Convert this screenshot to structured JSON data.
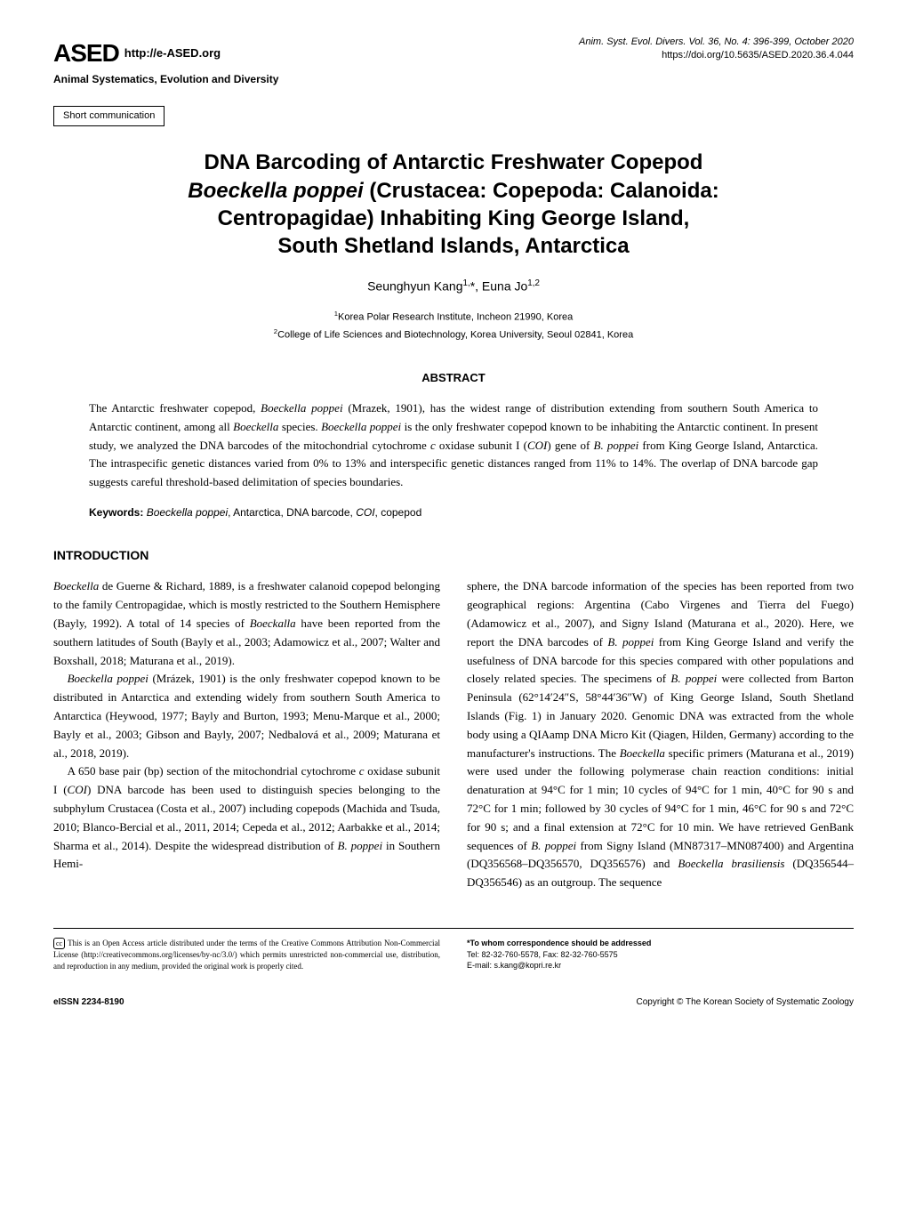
{
  "header": {
    "logo_text": "ASED",
    "logo_url": "http://e-ASED.org",
    "logo_subtitle": "Animal Systematics, Evolution and Diversity",
    "journal_line": "Anim. Syst. Evol. Divers.  Vol. 36, No. 4: 396-399,  October 2020",
    "doi": "https://doi.org/10.5635/ASED.2020.36.4.044"
  },
  "article_type": "Short communication",
  "title": {
    "line1": "DNA Barcoding of Antarctic Freshwater Copepod",
    "species": "Boeckella poppei",
    "line2_rest": " (Crustacea: Copepoda: Calanoida:",
    "line3": "Centropagidae) Inhabiting King George Island,",
    "line4": "South Shetland Islands, Antarctica"
  },
  "authors": "Seunghyun Kang1,*, Euna Jo1,2",
  "affiliations": {
    "a1": "1Korea Polar Research Institute, Incheon 21990, Korea",
    "a2": "2College of Life Sciences and Biotechnology, Korea University, Seoul 02841, Korea"
  },
  "abstract": {
    "heading": "ABSTRACT",
    "text": "The Antarctic freshwater copepod, Boeckella poppei (Mrazek, 1901), has the widest range of distribution extending from southern South America to Antarctic continent, among all Boeckella species. Boeckella poppei is the only freshwater copepod known to be inhabiting the Antarctic continent. In present study, we analyzed the DNA barcodes of the mitochondrial cytochrome c oxidase subunit I (COI) gene of B. poppei from King George Island, Antarctica. The intraspecific genetic distances varied from 0% to 13% and interspecific genetic distances ranged from 11% to 14%. The overlap of DNA barcode gap suggests careful threshold-based delimitation of species boundaries."
  },
  "keywords": {
    "label": "Keywords:",
    "text": " Boeckella poppei, Antarctica, DNA barcode, COI, copepod"
  },
  "introduction": {
    "heading": "INTRODUCTION",
    "col1_p1": "Boeckella de Guerne & Richard, 1889, is a freshwater calanoid copepod belonging to the family Centropagidae, which is mostly restricted to the Southern Hemisphere (Bayly, 1992). A total of 14 species of Boeckalla have been reported from the southern latitudes of South (Bayly et al., 2003; Adamowicz et al., 2007; Walter and Boxshall, 2018; Maturana et al., 2019).",
    "col1_p2": "Boeckella poppei (Mrázek, 1901) is the only freshwater copepod known to be distributed in Antarctica and extending widely from southern South America to Antarctica (Heywood, 1977; Bayly and Burton, 1993; Menu-Marque et al., 2000; Bayly et al., 2003; Gibson and Bayly, 2007; Nedbalová et al., 2009; Maturana et al., 2018, 2019).",
    "col1_p3": "A 650 base pair (bp) section of the mitochondrial cytochrome c oxidase subunit I (COI) DNA barcode has been used to distinguish species belonging to the subphylum Crustacea (Costa et al., 2007) including copepods (Machida and Tsuda, 2010; Blanco-Bercial et al., 2011, 2014; Cepeda et al., 2012; Aarbakke et al., 2014; Sharma et al., 2014). Despite the widespread distribution of B. poppei in Southern Hemi-",
    "col2_p1": "sphere, the DNA barcode information of the species has been reported from two geographical regions: Argentina (Cabo Virgenes and Tierra del Fuego) (Adamowicz et al., 2007), and Signy Island (Maturana et al., 2020). Here, we report the DNA barcodes of B. poppei from King George Island and verify the usefulness of DNA barcode for this species compared with other populations and closely related species. The specimens of B. poppei were collected from Barton Peninsula (62°14′24″S, 58°44′36″W) of King George Island, South Shetland Islands (Fig. 1) in January 2020. Genomic DNA was extracted from the whole body using a QIAamp DNA Micro Kit (Qiagen, Hilden, Germany) according to the manufacturer's instructions. The Boeckella specific primers (Maturana et al., 2019) were used under the following polymerase chain reaction conditions: initial denaturation at 94°C for 1 min; 10 cycles of 94°C for 1 min, 40°C for 90 s and 72°C for 1 min; followed by 30 cycles of 94°C for 1 min, 46°C for 90 s and 72°C for 90 s; and a final extension at 72°C for 10 min. We have retrieved GenBank sequences of B. poppei from Signy Island (MN87317–MN087400) and Argentina (DQ356568–DQ356570, DQ356576) and Boeckella brasiliensis (DQ356544–DQ356546) as an outgroup. The sequence"
  },
  "footer": {
    "cc_text": "This is an Open Access article distributed under the terms of the Creative Commons Attribution Non-Commercial License (http://creativecommons.org/licenses/by-nc/3.0/) which permits unrestricted non-commercial use, distribution, and reproduction in any medium, provided the original work is properly cited.",
    "corr_label": "*To whom correspondence should be addressed",
    "corr_tel": "Tel: 82-32-760-5578, Fax: 82-32-760-5575",
    "corr_email": "E-mail: s.kang@kopri.re.kr",
    "eissn": "eISSN 2234-8190",
    "copyright": "Copyright © The Korean Society of Systematic Zoology"
  },
  "styling": {
    "page_bg": "#ffffff",
    "text_color": "#000000",
    "title_fontsize": 24,
    "body_fontsize": 13,
    "abstract_fontsize": 13,
    "footer_fontsize": 9,
    "column_gap": 30
  }
}
